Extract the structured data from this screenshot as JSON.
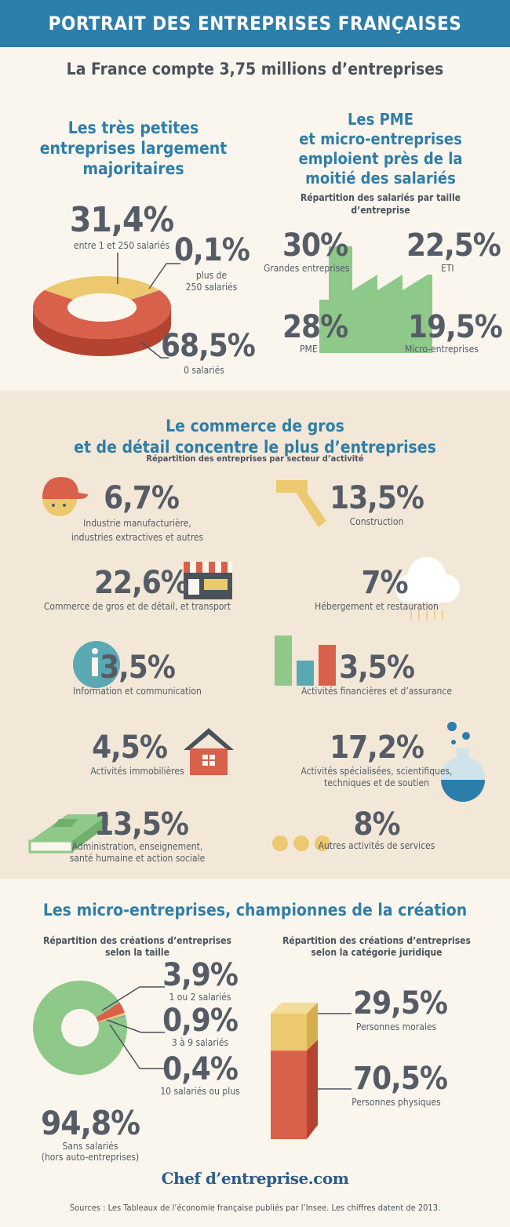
{
  "header": {
    "title": "PORTRAIT DES ENTREPRISES FRANÇAISES"
  },
  "intro": {
    "text": "La France compte 3,75 millions d’entreprises"
  },
  "tpe": {
    "title_lines": [
      "Les très petites",
      "entreprises largement",
      "majoritaires"
    ],
    "items": [
      {
        "pct": "31,4%",
        "label": "entre 1 et 250 salariés"
      },
      {
        "pct": "0,1%",
        "label_lines": [
          "plus de",
          "250 salariés"
        ]
      },
      {
        "pct": "68,5%",
        "label": "0 salariés"
      }
    ]
  },
  "pme": {
    "title_lines": [
      "Les PME",
      "et micro-entreprises",
      "emploient près de la",
      "moitié des salariés"
    ],
    "subtitle_lines": [
      "Répartition des salariés par taille",
      "d’entreprise"
    ],
    "items": [
      {
        "pct": "30%",
        "label": "Grandes entreprises"
      },
      {
        "pct": "22,5%",
        "label": "ETI"
      },
      {
        "pct": "28%",
        "label": "PME"
      },
      {
        "pct": "19,5%",
        "label": "Micro-entreprises"
      }
    ]
  },
  "secteurs": {
    "title_lines": [
      "Le commerce de gros",
      "et de détail concentre le plus d’entreprises"
    ],
    "subtitle": "Répartition des entreprises par secteur d’activité",
    "items": [
      {
        "pct": "6,7%",
        "label_lines": [
          "Industrie manufacturière,",
          "industries extractives et autres"
        ]
      },
      {
        "pct": "13,5%",
        "label_lines": [
          "Construction"
        ]
      },
      {
        "pct": "22,6%",
        "label_lines": [
          "Commerce de gros et de détail, et transport"
        ]
      },
      {
        "pct": "7%",
        "label_lines": [
          "Hébergement et restauration"
        ]
      },
      {
        "pct": "3,5%",
        "label_lines": [
          "Information et communication"
        ]
      },
      {
        "pct": "3,5%",
        "label_lines": [
          "Activités financières et d’assurance"
        ]
      },
      {
        "pct": "4,5%",
        "label_lines": [
          "Activités immobilières"
        ]
      },
      {
        "pct": "17,2%",
        "label_lines": [
          "Activités spécialisées, scientifiques,",
          "techniques et de soutien"
        ]
      },
      {
        "pct": "13,5%",
        "label_lines": [
          "Administration, enseignement,",
          "santé humaine et action sociale"
        ]
      },
      {
        "pct": "8%",
        "label_lines": [
          "Autres activités de services"
        ]
      }
    ]
  },
  "creation": {
    "title": "Les micro-entreprises, championnes de la création",
    "left_subtitle_lines": [
      "Répartition des créations d’entreprises",
      "selon la taille"
    ],
    "right_subtitle_lines": [
      "Répartition des créations d’entreprises",
      "selon la catégorie juridique"
    ],
    "size_items": [
      {
        "pct": "3,9%",
        "label": "1 ou 2 salariés"
      },
      {
        "pct": "0,9%",
        "label": "3 à 9 salariés"
      },
      {
        "pct": "0,4%",
        "label": "10 salariés ou plus"
      },
      {
        "pct": "94,8%",
        "label_lines": [
          "Sans salariés",
          "(hors auto-entreprises)"
        ]
      }
    ],
    "legal_items": [
      {
        "pct": "29,5%",
        "label": "Personnes morales"
      },
      {
        "pct": "70,5%",
        "label": "Personnes physiques"
      }
    ]
  },
  "footer": {
    "logo": "Chef d’entreprise.com",
    "sources": "Sources : Les Tableaux de l’économie française publiés par l’Insee. Les chiffres datent de 2013."
  },
  "colors": {
    "blue": "#2c7eab",
    "red": "#d9604a",
    "yellow": "#ecc96e",
    "green": "#8fc98a",
    "teal": "#5aa8b3",
    "text": "#555c66"
  },
  "chart_data": [
    {
      "type": "pie",
      "title": "Les très petites entreprises largement majoritaires",
      "categories": [
        "entre 1 et 250 salariés",
        "plus de 250 salariés",
        "0 salariés"
      ],
      "values": [
        31.4,
        0.1,
        68.5
      ]
    },
    {
      "type": "bar",
      "title": "Répartition des salariés par taille d’entreprise",
      "categories": [
        "Grandes entreprises",
        "ETI",
        "PME",
        "Micro-entreprises"
      ],
      "values": [
        30,
        22.5,
        28,
        19.5
      ]
    },
    {
      "type": "bar",
      "title": "Répartition des entreprises par secteur d’activité",
      "categories": [
        "Industrie manufacturière, industries extractives et autres",
        "Construction",
        "Commerce de gros et de détail, et transport",
        "Hébergement et restauration",
        "Information et communication",
        "Activités financières et d’assurance",
        "Activités immobilières",
        "Activités spécialisées, scientifiques, techniques et de soutien",
        "Administration, enseignement, santé humaine et action sociale",
        "Autres activités de services"
      ],
      "values": [
        6.7,
        13.5,
        22.6,
        7,
        3.5,
        3.5,
        4.5,
        17.2,
        13.5,
        8
      ]
    },
    {
      "type": "pie",
      "title": "Répartition des créations d’entreprises selon la taille",
      "categories": [
        "1 ou 2 salariés",
        "3 à 9 salariés",
        "10 salariés ou plus",
        "Sans salariés (hors auto-entreprises)"
      ],
      "values": [
        3.9,
        0.9,
        0.4,
        94.8
      ]
    },
    {
      "type": "bar",
      "title": "Répartition des créations d’entreprises selon la catégorie juridique",
      "categories": [
        "Personnes morales",
        "Personnes physiques"
      ],
      "values": [
        29.5,
        70.5
      ]
    }
  ]
}
